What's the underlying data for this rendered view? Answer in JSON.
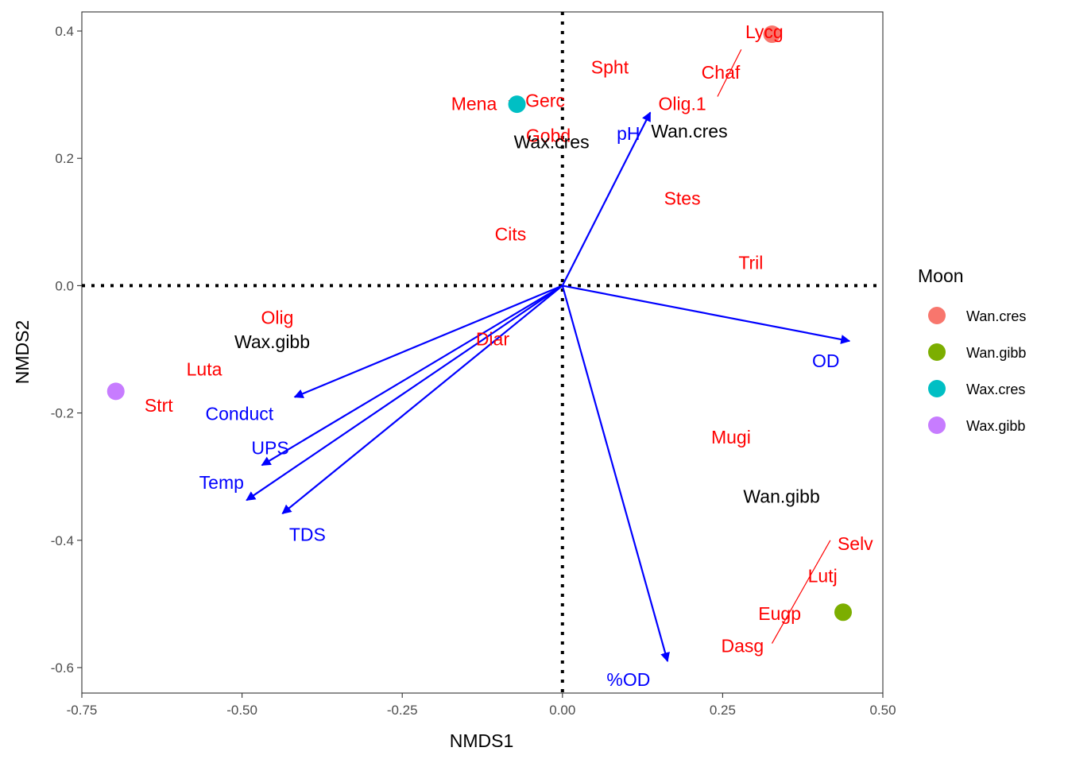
{
  "chart_data": {
    "type": "scatter",
    "xlabel": "NMDS1",
    "ylabel": "NMDS2",
    "xlim": [
      -0.75,
      0.5
    ],
    "ylim": [
      -0.64,
      0.43
    ],
    "x_ticks": [
      -0.75,
      -0.5,
      -0.25,
      0.0,
      0.25,
      0.5
    ],
    "x_tick_labels": [
      "-0.75",
      "-0.50",
      "-0.25",
      "0.00",
      "0.25",
      "0.50"
    ],
    "y_ticks": [
      -0.6,
      -0.4,
      -0.2,
      0.0,
      0.2,
      0.4
    ],
    "y_tick_labels": [
      "-0.6",
      "-0.4",
      "-0.2",
      "0.0",
      "0.2",
      "0.4"
    ],
    "grid": false,
    "reference_lines": [
      {
        "axis": "x",
        "value": 0.0,
        "style": "dotted"
      },
      {
        "axis": "y",
        "value": 0.0,
        "style": "dotted"
      }
    ],
    "legend": {
      "title": "Moon",
      "position": "right",
      "entries": [
        {
          "label": "Wan.cres",
          "color": "#F8766D"
        },
        {
          "label": "Wan.gibb",
          "color": "#7CAE00"
        },
        {
          "label": "Wax.cres",
          "color": "#00BFC4"
        },
        {
          "label": "Wax.gibb",
          "color": "#C77CFF"
        }
      ]
    },
    "colors": {
      "species": "#FF0000",
      "vectors": "#0000FF",
      "sites": "#000000"
    },
    "points": [
      {
        "group": "Wan.cres",
        "x": 0.327,
        "y": 0.395
      },
      {
        "group": "Wan.gibb",
        "x": 0.438,
        "y": -0.513
      },
      {
        "group": "Wax.cres",
        "x": -0.071,
        "y": 0.285
      },
      {
        "group": "Wax.gibb",
        "x": -0.697,
        "y": -0.166
      }
    ],
    "site_labels": [
      {
        "text": "Wan.cres",
        "x": 0.198,
        "y": 0.243
      },
      {
        "text": "Wan.gibb",
        "x": 0.342,
        "y": -0.331
      },
      {
        "text": "Wax.cres",
        "x": -0.017,
        "y": 0.226
      },
      {
        "text": "Wax.gibb",
        "x": -0.453,
        "y": -0.088
      }
    ],
    "species_labels": [
      {
        "text": "Lycg",
        "x": 0.315,
        "y": 0.399
      },
      {
        "text": "Spht",
        "x": 0.074,
        "y": 0.343
      },
      {
        "text": "Chaf",
        "x": 0.247,
        "y": 0.335
      },
      {
        "text": "Mena",
        "x": -0.138,
        "y": 0.286
      },
      {
        "text": "Gerc",
        "x": -0.027,
        "y": 0.291
      },
      {
        "text": "Olig.1",
        "x": 0.187,
        "y": 0.286
      },
      {
        "text": "Gobd",
        "x": -0.022,
        "y": 0.236
      },
      {
        "text": "Stes",
        "x": 0.187,
        "y": 0.137
      },
      {
        "text": "Cits",
        "x": -0.081,
        "y": 0.081
      },
      {
        "text": "Tril",
        "x": 0.294,
        "y": 0.036
      },
      {
        "text": "Olig",
        "x": -0.445,
        "y": -0.05
      },
      {
        "text": "Diar",
        "x": -0.109,
        "y": -0.084
      },
      {
        "text": "Luta",
        "x": -0.559,
        "y": -0.131
      },
      {
        "text": "Strt",
        "x": -0.63,
        "y": -0.188
      },
      {
        "text": "Mugi",
        "x": 0.263,
        "y": -0.238
      },
      {
        "text": "Selv",
        "x": 0.457,
        "y": -0.405
      },
      {
        "text": "Lutj",
        "x": 0.406,
        "y": -0.456
      },
      {
        "text": "Eugp",
        "x": 0.339,
        "y": -0.515
      },
      {
        "text": "Dasg",
        "x": 0.281,
        "y": -0.566
      }
    ],
    "label_leaders": [
      {
        "x1": 0.279,
        "y1": 0.371,
        "x2": 0.242,
        "y2": 0.297
      },
      {
        "x1": -0.084,
        "y1": 0.291,
        "x2": -0.07,
        "y2": 0.277
      },
      {
        "x1": 0.418,
        "y1": -0.4,
        "x2": 0.327,
        "y2": -0.562
      }
    ],
    "vectors": [
      {
        "label": "pH",
        "x": 0.137,
        "y": 0.272,
        "label_x": 0.103,
        "label_y": 0.239
      },
      {
        "label": "OD",
        "x": 0.448,
        "y": -0.087,
        "label_x": 0.411,
        "label_y": -0.118
      },
      {
        "label": "%OD",
        "x": 0.164,
        "y": -0.59,
        "label_x": 0.103,
        "label_y": -0.619
      },
      {
        "label": "Conduct",
        "x": -0.418,
        "y": -0.175,
        "label_x": -0.504,
        "label_y": -0.201
      },
      {
        "label": "UPS",
        "x": -0.469,
        "y": -0.282,
        "label_x": -0.456,
        "label_y": -0.255
      },
      {
        "label": "Temp",
        "x": -0.493,
        "y": -0.337,
        "label_x": -0.532,
        "label_y": -0.309
      },
      {
        "label": "TDS",
        "x": -0.437,
        "y": -0.358,
        "label_x": -0.398,
        "label_y": -0.391
      }
    ]
  }
}
